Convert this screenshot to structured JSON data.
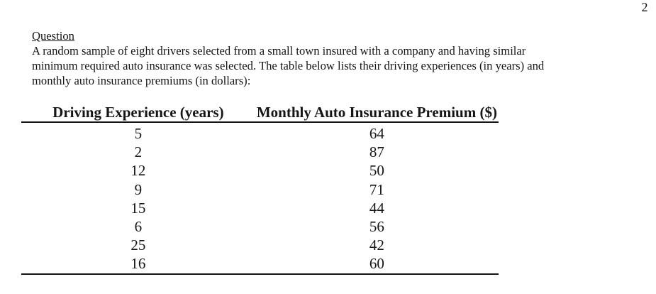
{
  "page": {
    "number": "2"
  },
  "question": {
    "heading": "Question",
    "lines": [
      "A random sample of eight drivers selected from a small town insured with a company and having similar",
      "minimum required auto insurance was selected. The table below lists their driving experiences (in years) and",
      "monthly auto insurance premiums (in dollars):"
    ]
  },
  "table": {
    "headers": [
      "Driving Experience (years)",
      "Monthly Auto Insurance Premium ($)"
    ],
    "rows": [
      [
        "5",
        "64"
      ],
      [
        "2",
        "87"
      ],
      [
        "12",
        "50"
      ],
      [
        "9",
        "71"
      ],
      [
        "15",
        "44"
      ],
      [
        "6",
        "56"
      ],
      [
        "25",
        "42"
      ],
      [
        "16",
        "60"
      ]
    ]
  },
  "colors": {
    "text": "#151515",
    "background": "#ffffff",
    "rule": "#151515"
  }
}
